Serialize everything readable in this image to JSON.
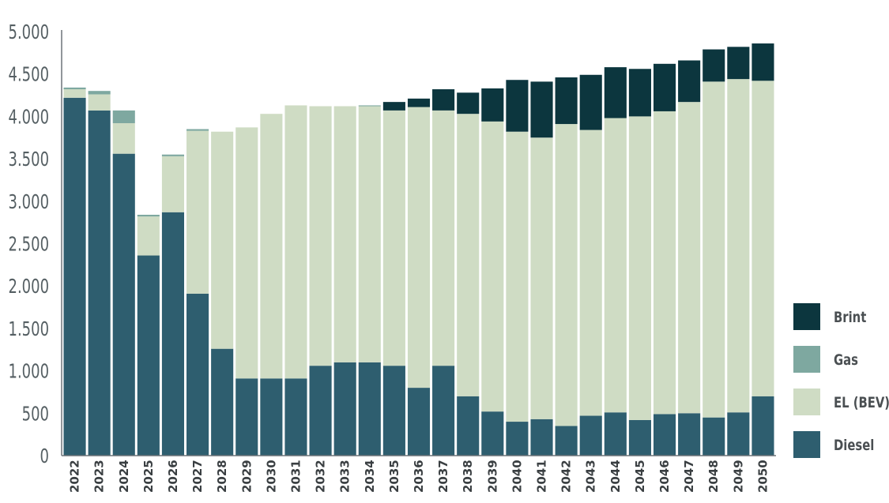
{
  "chart_data": {
    "type": "bar",
    "stacked": true,
    "title": "",
    "xlabel": "",
    "ylabel": "",
    "ylim": [
      0,
      5000
    ],
    "yticks": [
      0,
      500,
      1000,
      1500,
      2000,
      2500,
      3000,
      3500,
      4000,
      4500,
      5000
    ],
    "ytick_labels": [
      "0",
      "500",
      "1.000",
      "1.500",
      "2.000",
      "2.500",
      "3.000",
      "3.500",
      "4.000",
      "4.500",
      "5.000"
    ],
    "grid": false,
    "legend_position": "bottom-right",
    "categories": [
      "2022",
      "2023",
      "2024",
      "2025",
      "2026",
      "2027",
      "2028",
      "2029",
      "2030",
      "2031",
      "2032",
      "2033",
      "2034",
      "2035",
      "2036",
      "2037",
      "2038",
      "2039",
      "2040",
      "2041",
      "2042",
      "2043",
      "2044",
      "2045",
      "2046",
      "2047",
      "2048",
      "2049",
      "2050"
    ],
    "series": [
      {
        "name": "Diesel",
        "color": "#2e5e6f",
        "values": [
          4220,
          4070,
          3560,
          2360,
          2870,
          1910,
          1260,
          910,
          910,
          910,
          1060,
          1100,
          1100,
          1060,
          800,
          1060,
          700,
          520,
          400,
          430,
          350,
          470,
          510,
          420,
          490,
          500,
          450,
          510,
          700
        ]
      },
      {
        "name": "EL (BEV)",
        "color": "#cfdcc4",
        "values": [
          100,
          190,
          360,
          460,
          660,
          1920,
          2560,
          2960,
          3120,
          3220,
          3060,
          3020,
          3020,
          3010,
          3310,
          3010,
          3330,
          3420,
          3420,
          3320,
          3560,
          3370,
          3470,
          3580,
          3570,
          3670,
          3960,
          3930,
          3720
        ]
      },
      {
        "name": "Gas",
        "color": "#7ea8a0",
        "values": [
          20,
          40,
          150,
          20,
          20,
          20,
          0,
          0,
          0,
          0,
          0,
          0,
          10,
          0,
          0,
          0,
          0,
          0,
          0,
          0,
          0,
          0,
          0,
          0,
          0,
          0,
          0,
          0,
          0
        ]
      },
      {
        "name": "Brint",
        "color": "#0c363e",
        "values": [
          0,
          0,
          0,
          0,
          0,
          0,
          0,
          0,
          0,
          0,
          0,
          0,
          0,
          100,
          100,
          250,
          250,
          390,
          610,
          660,
          550,
          650,
          600,
          560,
          560,
          490,
          380,
          380,
          440
        ]
      }
    ]
  }
}
